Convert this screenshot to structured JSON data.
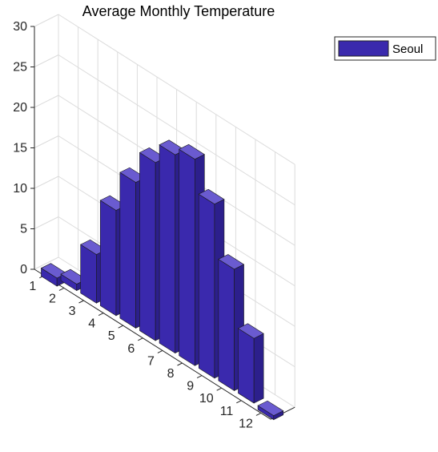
{
  "chart_data": {
    "type": "bar",
    "title": "Average Monthly Temperature",
    "categories": [
      "1",
      "2",
      "3",
      "4",
      "5",
      "6",
      "7",
      "8",
      "9",
      "10",
      "11",
      "12"
    ],
    "series": [
      {
        "name": "Seoul",
        "values": [
          -1.0,
          0.8,
          6.0,
          13.0,
          18.0,
          22.0,
          24.5,
          25.5,
          21.5,
          15.0,
          8.0,
          -0.5
        ]
      }
    ],
    "ylim": [
      0,
      30
    ],
    "yticks": [
      "0",
      "5",
      "10",
      "15",
      "20",
      "25",
      "30"
    ],
    "grid": true,
    "legend_position": "top-right",
    "colors": {
      "bar": "#3a29ad",
      "bar_top": "#6a5bd0",
      "bar_side": "#2c1f8c",
      "grid": "#dcdcdc",
      "axis": "#262626"
    }
  }
}
